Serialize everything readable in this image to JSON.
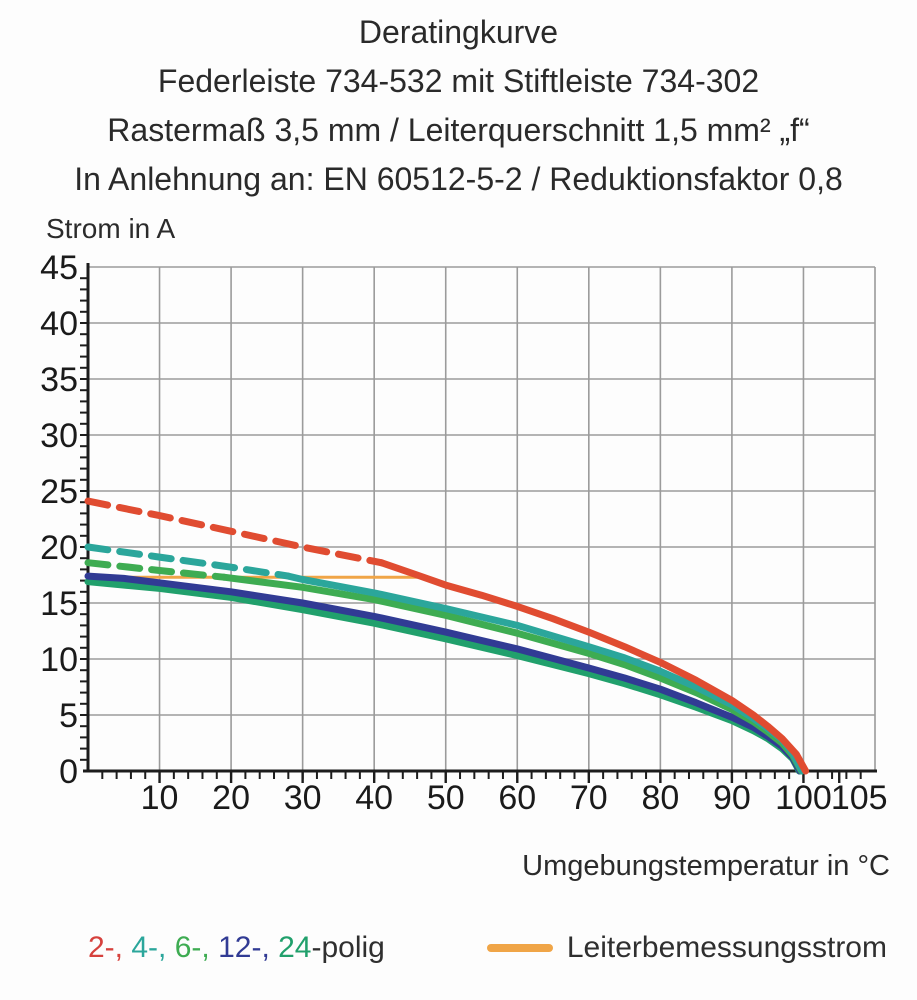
{
  "header": {
    "lines": [
      "Deratingkurve",
      "Federleiste 734-532 mit Stiftleiste 734-302",
      "Rastermaß 3,5 mm / Leiterquerschnitt 1,5 mm² „f“",
      "In Anlehnung an: EN 60512-5-2 / Reduktionsfaktor 0,8"
    ]
  },
  "chart_data": {
    "type": "line",
    "title": "Deratingkurve",
    "xlabel": "Umgebungstemperatur in °C",
    "ylabel": "Strom in A",
    "xlim": [
      0,
      110
    ],
    "ylim": [
      0,
      45
    ],
    "grid": true,
    "x_gridlines": [
      10,
      20,
      30,
      40,
      50,
      60,
      70,
      80,
      90,
      100,
      110
    ],
    "y_gridlines": [
      5,
      10,
      15,
      20,
      25,
      30,
      35,
      40,
      45
    ],
    "x_minor_step": 2,
    "y_minor_step": 1,
    "x_tick_labels": [
      {
        "v": 10,
        "t": "10"
      },
      {
        "v": 20,
        "t": "20"
      },
      {
        "v": 30,
        "t": "30"
      },
      {
        "v": 40,
        "t": "40"
      },
      {
        "v": 50,
        "t": "50"
      },
      {
        "v": 60,
        "t": "60"
      },
      {
        "v": 70,
        "t": "70"
      },
      {
        "v": 80,
        "t": "80"
      },
      {
        "v": 90,
        "t": "90"
      },
      {
        "v": 100,
        "t": "100"
      },
      {
        "v": 105,
        "t": "105",
        "dx": 20
      }
    ],
    "y_tick_labels": [
      0,
      5,
      10,
      15,
      20,
      25,
      30,
      35,
      40,
      45
    ],
    "colors": {
      "grid": "#9b9b9b",
      "axis": "#1c1c1c",
      "tick_text": "#1a1a1a"
    },
    "series": [
      {
        "name": "Leiterbemessungsstrom",
        "style": "solid",
        "color": "#f0a547",
        "width": 3,
        "points": [
          [
            0,
            17.3
          ],
          [
            46,
            17.3
          ]
        ]
      },
      {
        "name": "24-polig",
        "segment": "solid",
        "style": "solid",
        "color": "#21a06c",
        "width": 7,
        "points": [
          [
            0,
            16.9
          ],
          [
            10,
            16.3
          ],
          [
            20,
            15.5
          ],
          [
            30,
            14.4
          ],
          [
            40,
            13.2
          ],
          [
            50,
            11.8
          ],
          [
            60,
            10.3
          ],
          [
            70,
            8.7
          ],
          [
            75,
            7.8
          ],
          [
            80,
            6.8
          ],
          [
            85,
            5.7
          ],
          [
            90,
            4.5
          ],
          [
            93,
            3.6
          ],
          [
            95,
            2.9
          ],
          [
            97,
            2.0
          ],
          [
            98.5,
            1.1
          ],
          [
            99.4,
            0
          ]
        ]
      },
      {
        "name": "12-polig",
        "segment": "solid",
        "style": "solid",
        "color": "#313b94",
        "width": 7,
        "points": [
          [
            0,
            17.4
          ],
          [
            5,
            17.2
          ],
          [
            10,
            16.8
          ],
          [
            20,
            16.0
          ],
          [
            30,
            15.0
          ],
          [
            40,
            13.8
          ],
          [
            50,
            12.4
          ],
          [
            60,
            10.9
          ],
          [
            70,
            9.2
          ],
          [
            75,
            8.3
          ],
          [
            80,
            7.3
          ],
          [
            85,
            6.1
          ],
          [
            90,
            4.8
          ],
          [
            93,
            3.9
          ],
          [
            95,
            3.1
          ],
          [
            97,
            2.2
          ],
          [
            98.5,
            1.2
          ],
          [
            99.5,
            0
          ]
        ]
      },
      {
        "name": "6-polig",
        "segment": "dashed",
        "style": "dashed",
        "color": "#3eac52",
        "width": 7,
        "points": [
          [
            0,
            18.6
          ],
          [
            10,
            17.9
          ],
          [
            19,
            17.3
          ]
        ]
      },
      {
        "name": "6-polig",
        "segment": "solid",
        "style": "solid",
        "color": "#3eac52",
        "width": 7,
        "points": [
          [
            19,
            17.3
          ],
          [
            30,
            16.4
          ],
          [
            40,
            15.3
          ],
          [
            50,
            13.9
          ],
          [
            60,
            12.3
          ],
          [
            70,
            10.5
          ],
          [
            75,
            9.5
          ],
          [
            80,
            8.3
          ],
          [
            85,
            7.0
          ],
          [
            90,
            5.5
          ],
          [
            93,
            4.4
          ],
          [
            95,
            3.5
          ],
          [
            97,
            2.5
          ],
          [
            98.5,
            1.4
          ],
          [
            99.7,
            0
          ]
        ]
      },
      {
        "name": "4-polig",
        "segment": "dashed",
        "style": "dashed",
        "color": "#2ba69b",
        "width": 7,
        "points": [
          [
            0,
            20.0
          ],
          [
            10,
            19.1
          ],
          [
            20,
            18.2
          ],
          [
            28,
            17.4
          ]
        ]
      },
      {
        "name": "4-polig",
        "segment": "solid",
        "style": "solid",
        "color": "#2ba69b",
        "width": 7,
        "points": [
          [
            28,
            17.4
          ],
          [
            30,
            17.1
          ],
          [
            40,
            15.9
          ],
          [
            50,
            14.5
          ],
          [
            60,
            13.0
          ],
          [
            70,
            11.1
          ],
          [
            75,
            10.1
          ],
          [
            80,
            8.9
          ],
          [
            85,
            7.5
          ],
          [
            90,
            5.9
          ],
          [
            93,
            4.7
          ],
          [
            95,
            3.8
          ],
          [
            97,
            2.8
          ],
          [
            98.5,
            1.6
          ],
          [
            99.8,
            0
          ]
        ]
      },
      {
        "name": "2-polig",
        "segment": "dashed",
        "style": "dashed",
        "color": "#e04c31",
        "width": 7,
        "points": [
          [
            0,
            24.1
          ],
          [
            10,
            22.8
          ],
          [
            20,
            21.4
          ],
          [
            30,
            20.0
          ],
          [
            41,
            18.6
          ]
        ]
      },
      {
        "name": "2-polig",
        "segment": "solid",
        "style": "solid",
        "color": "#e04c31",
        "width": 7,
        "points": [
          [
            41,
            18.6
          ],
          [
            46,
            17.5
          ],
          [
            50,
            16.6
          ],
          [
            55,
            15.7
          ],
          [
            60,
            14.7
          ],
          [
            65,
            13.6
          ],
          [
            70,
            12.4
          ],
          [
            75,
            11.1
          ],
          [
            80,
            9.7
          ],
          [
            85,
            8.1
          ],
          [
            90,
            6.3
          ],
          [
            93,
            5.0
          ],
          [
            95,
            4.0
          ],
          [
            97,
            2.9
          ],
          [
            99,
            1.5
          ],
          [
            100.3,
            0
          ]
        ]
      }
    ]
  },
  "legend": {
    "poles": {
      "items": [
        {
          "text": "2-, ",
          "color": "#d6413d"
        },
        {
          "text": "4-, ",
          "color": "#2ba69b"
        },
        {
          "text": "6-, ",
          "color": "#3eac52"
        },
        {
          "text": "12-, ",
          "color": "#313b94"
        },
        {
          "text": "24",
          "color": "#21a06c"
        },
        {
          "text": "-polig",
          "color": "#2f2f2f"
        }
      ]
    },
    "conductor": {
      "label": "Leiterbemessungsstrom",
      "color": "#f0a547"
    }
  }
}
